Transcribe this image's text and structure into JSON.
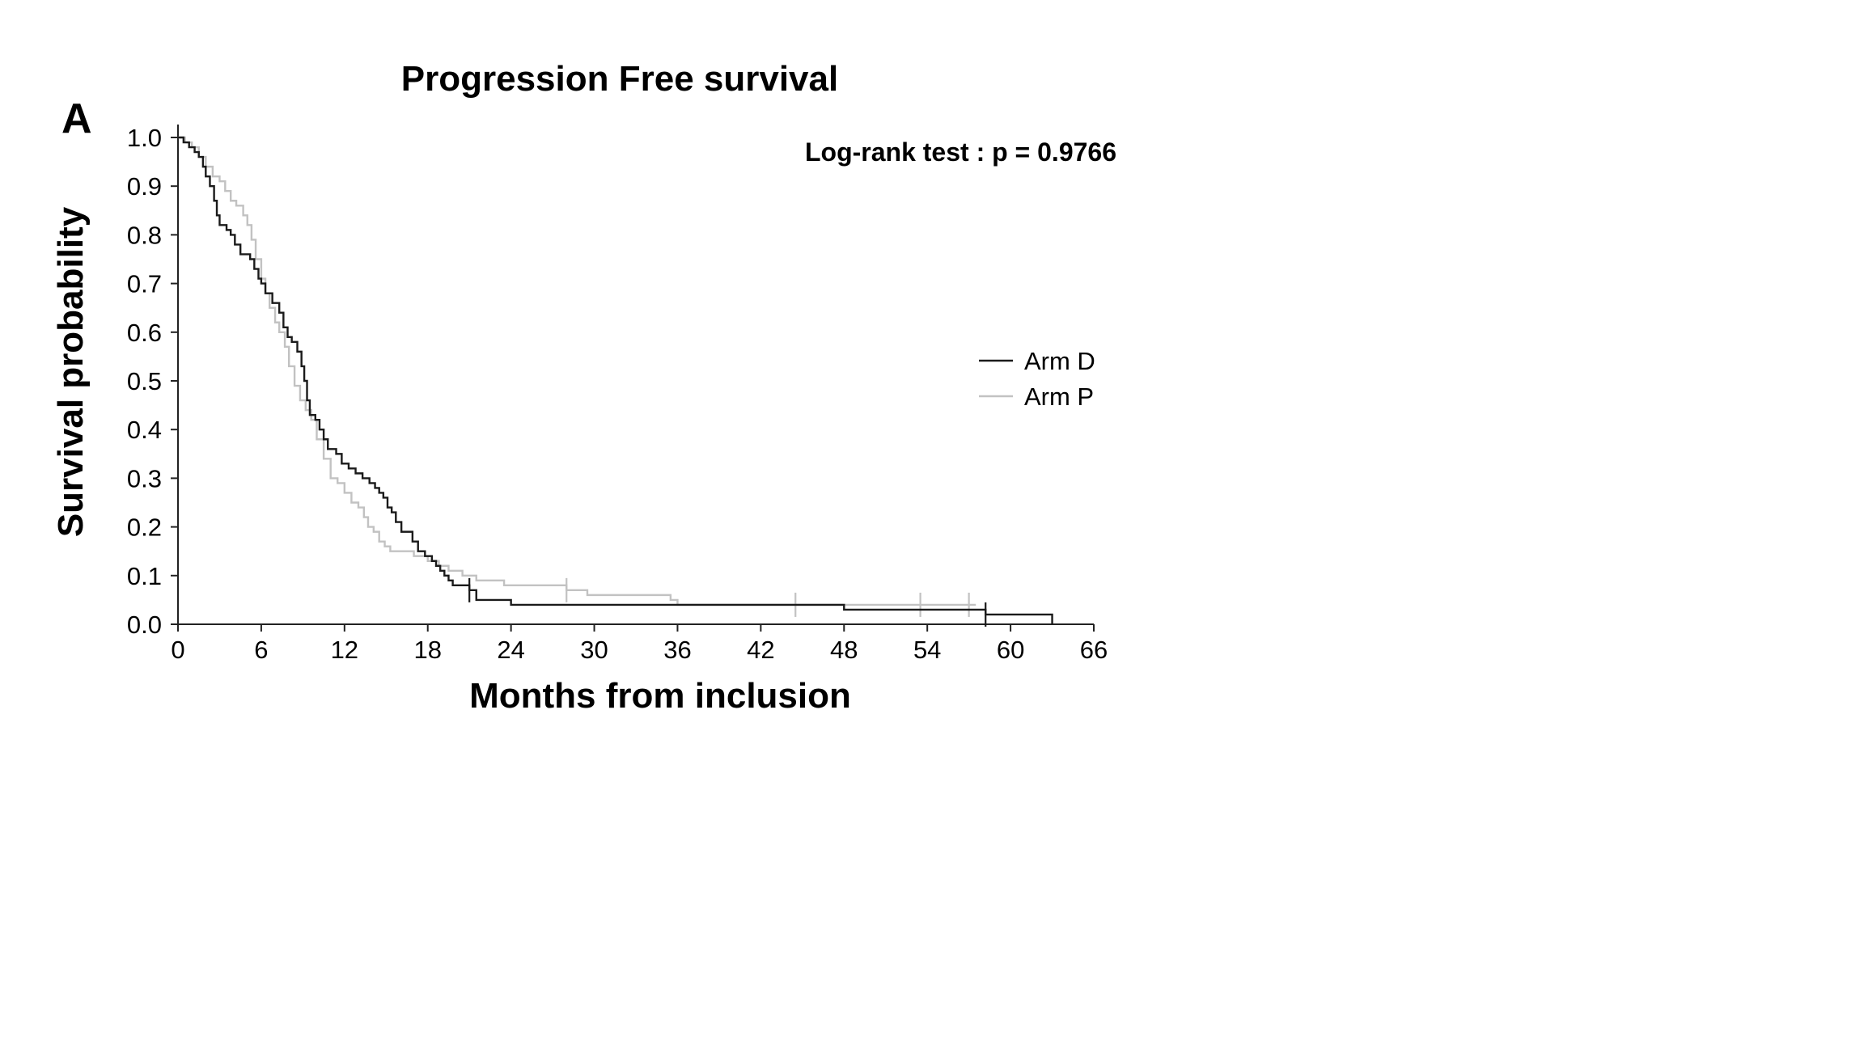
{
  "chart_data": {
    "type": "line",
    "subtype": "kaplan-meier step",
    "panel_label": "A",
    "title": "Progression Free survival",
    "annotation": "Log-rank test : p = 0.9766",
    "xlabel": "Months from inclusion",
    "ylabel": "Survival probability",
    "xlim": [
      0,
      66
    ],
    "ylim": [
      0,
      1
    ],
    "x_ticks": [
      "0",
      "6",
      "12",
      "18",
      "24",
      "30",
      "36",
      "42",
      "48",
      "54",
      "60",
      "66"
    ],
    "y_ticks": [
      "0.0",
      "0.1",
      "0.2",
      "0.3",
      "0.4",
      "0.5",
      "0.6",
      "0.7",
      "0.8",
      "0.9",
      "1.0"
    ],
    "grid": false,
    "legend_position": "right",
    "series": [
      {
        "name": "Arm D",
        "color": "#1a1a1a",
        "points": [
          [
            0,
            1.0
          ],
          [
            0.4,
            0.99
          ],
          [
            0.8,
            0.98
          ],
          [
            1.2,
            0.97
          ],
          [
            1.5,
            0.96
          ],
          [
            1.8,
            0.94
          ],
          [
            2.0,
            0.92
          ],
          [
            2.3,
            0.9
          ],
          [
            2.6,
            0.87
          ],
          [
            2.8,
            0.84
          ],
          [
            3.0,
            0.82
          ],
          [
            3.5,
            0.81
          ],
          [
            3.8,
            0.8
          ],
          [
            4.1,
            0.78
          ],
          [
            4.5,
            0.76
          ],
          [
            5.2,
            0.75
          ],
          [
            5.5,
            0.73
          ],
          [
            5.8,
            0.71
          ],
          [
            6.0,
            0.7
          ],
          [
            6.3,
            0.68
          ],
          [
            6.8,
            0.66
          ],
          [
            7.3,
            0.64
          ],
          [
            7.6,
            0.61
          ],
          [
            7.9,
            0.59
          ],
          [
            8.2,
            0.58
          ],
          [
            8.6,
            0.56
          ],
          [
            8.9,
            0.53
          ],
          [
            9.1,
            0.5
          ],
          [
            9.3,
            0.46
          ],
          [
            9.5,
            0.43
          ],
          [
            9.9,
            0.42
          ],
          [
            10.2,
            0.4
          ],
          [
            10.5,
            0.38
          ],
          [
            10.8,
            0.36
          ],
          [
            11.4,
            0.35
          ],
          [
            11.8,
            0.33
          ],
          [
            12.3,
            0.32
          ],
          [
            12.8,
            0.31
          ],
          [
            13.3,
            0.3
          ],
          [
            13.8,
            0.29
          ],
          [
            14.2,
            0.28
          ],
          [
            14.5,
            0.27
          ],
          [
            14.8,
            0.26
          ],
          [
            15.1,
            0.24
          ],
          [
            15.4,
            0.23
          ],
          [
            15.7,
            0.21
          ],
          [
            16.1,
            0.19
          ],
          [
            16.9,
            0.17
          ],
          [
            17.3,
            0.15
          ],
          [
            17.8,
            0.14
          ],
          [
            18.3,
            0.13
          ],
          [
            18.6,
            0.12
          ],
          [
            18.9,
            0.11
          ],
          [
            19.2,
            0.1
          ],
          [
            19.5,
            0.09
          ],
          [
            19.8,
            0.08
          ],
          [
            21.0,
            0.07
          ],
          [
            21.5,
            0.05
          ],
          [
            24.0,
            0.04
          ],
          [
            48.0,
            0.03
          ],
          [
            58.2,
            0.03
          ],
          [
            58.2,
            0.02
          ],
          [
            63.0,
            0.02
          ],
          [
            63.0,
            0.0
          ]
        ],
        "censor_marks": [
          [
            21.0,
            0.07
          ],
          [
            58.2,
            0.02
          ]
        ]
      },
      {
        "name": "Arm P",
        "color": "#c2c2c2",
        "points": [
          [
            0,
            1.0
          ],
          [
            0.5,
            0.99
          ],
          [
            1.0,
            0.98
          ],
          [
            1.5,
            0.96
          ],
          [
            2.0,
            0.94
          ],
          [
            2.5,
            0.92
          ],
          [
            3.0,
            0.91
          ],
          [
            3.4,
            0.89
          ],
          [
            3.8,
            0.87
          ],
          [
            4.2,
            0.86
          ],
          [
            4.7,
            0.84
          ],
          [
            5.0,
            0.82
          ],
          [
            5.3,
            0.79
          ],
          [
            5.6,
            0.75
          ],
          [
            6.0,
            0.71
          ],
          [
            6.3,
            0.68
          ],
          [
            6.6,
            0.65
          ],
          [
            7.0,
            0.62
          ],
          [
            7.3,
            0.6
          ],
          [
            7.7,
            0.57
          ],
          [
            8.0,
            0.53
          ],
          [
            8.4,
            0.49
          ],
          [
            8.8,
            0.46
          ],
          [
            9.2,
            0.44
          ],
          [
            9.6,
            0.42
          ],
          [
            10.0,
            0.38
          ],
          [
            10.5,
            0.34
          ],
          [
            11.0,
            0.3
          ],
          [
            11.5,
            0.29
          ],
          [
            12.0,
            0.27
          ],
          [
            12.5,
            0.25
          ],
          [
            13.0,
            0.24
          ],
          [
            13.4,
            0.22
          ],
          [
            13.7,
            0.2
          ],
          [
            14.1,
            0.19
          ],
          [
            14.5,
            0.17
          ],
          [
            14.9,
            0.16
          ],
          [
            15.3,
            0.15
          ],
          [
            16.5,
            0.15
          ],
          [
            17.0,
            0.14
          ],
          [
            18.0,
            0.13
          ],
          [
            18.8,
            0.12
          ],
          [
            19.5,
            0.11
          ],
          [
            20.5,
            0.1
          ],
          [
            21.5,
            0.09
          ],
          [
            23.5,
            0.08
          ],
          [
            28.0,
            0.07
          ],
          [
            29.5,
            0.06
          ],
          [
            35.5,
            0.05
          ],
          [
            36.0,
            0.04
          ],
          [
            48.0,
            0.04
          ],
          [
            57.5,
            0.04
          ]
        ],
        "censor_marks": [
          [
            28.0,
            0.07
          ],
          [
            44.5,
            0.04
          ],
          [
            53.5,
            0.04
          ],
          [
            57.0,
            0.04
          ]
        ]
      }
    ]
  }
}
